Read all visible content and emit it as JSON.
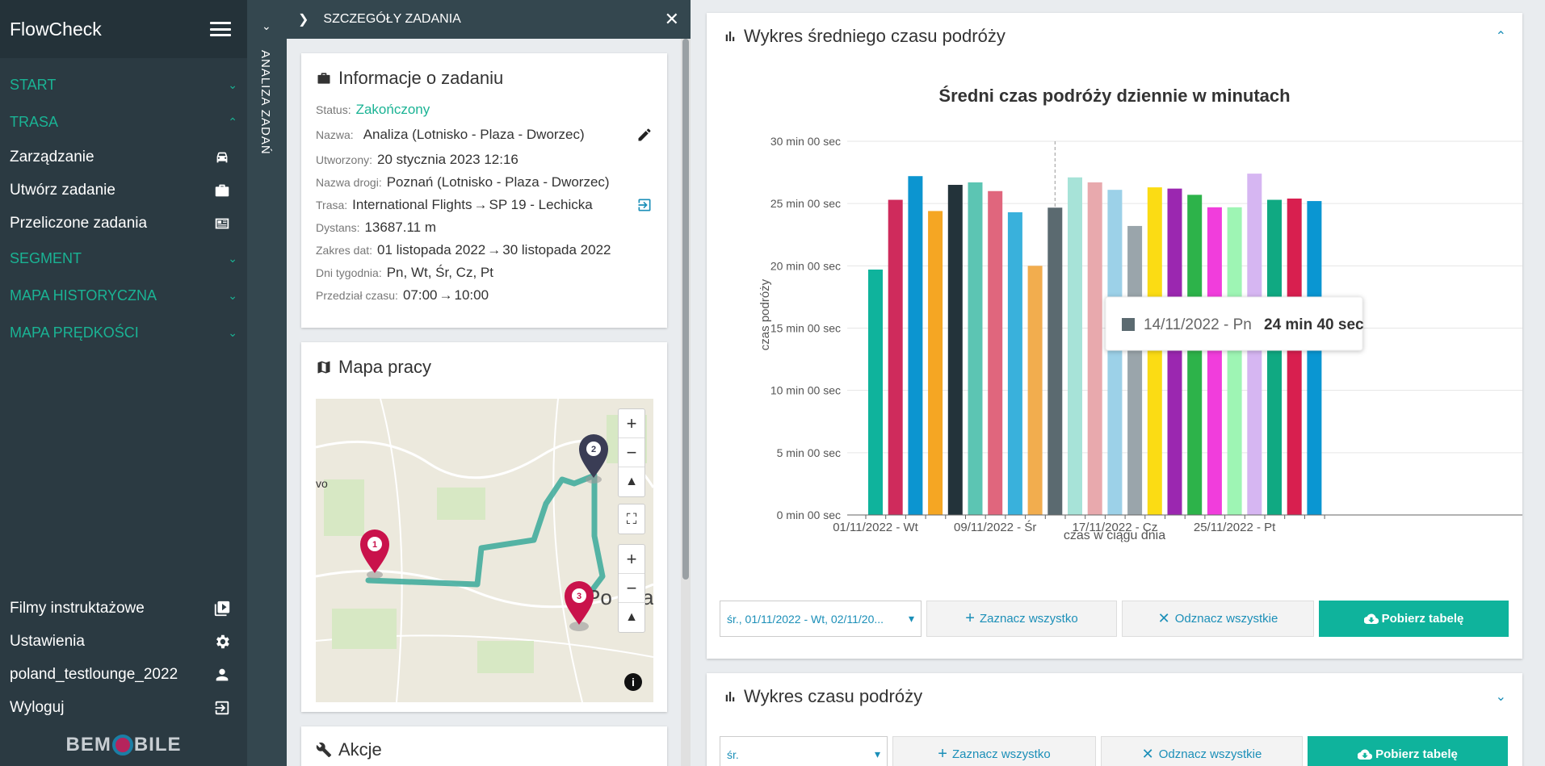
{
  "app": {
    "title": "FlowCheck"
  },
  "sidebar": {
    "sections": [
      {
        "label": "START"
      },
      {
        "label": "TRASA"
      },
      {
        "label": "SEGMENT"
      },
      {
        "label": "MAPA HISTORYCZNA"
      },
      {
        "label": "MAPA PRĘDKOŚCI"
      }
    ],
    "trasa_items": [
      {
        "label": "Zarządzanie",
        "icon": "car-icon"
      },
      {
        "label": "Utwórz zadanie",
        "icon": "briefcase-icon"
      },
      {
        "label": "Przeliczone zadania",
        "icon": "newspaper-icon"
      }
    ],
    "bottom_items": [
      {
        "label": "Filmy instruktażowe",
        "icon": "video-icon"
      },
      {
        "label": "Ustawienia",
        "icon": "gear-icon"
      },
      {
        "label": "poland_testlounge_2022",
        "icon": "user-icon"
      },
      {
        "label": "Wyloguj",
        "icon": "logout-icon"
      }
    ],
    "logo": {
      "left": "BEM",
      "right": "BILE"
    }
  },
  "strip": {
    "label": "ANALIZA ZADAŃ"
  },
  "details": {
    "header": "SZCZEGÓŁY ZADANIA",
    "info_title": "Informacje o zadaniu",
    "status_label": "Status:",
    "status_value": "Zakończony",
    "name_label": "Nazwa:",
    "name_value": "Analiza (Lotnisko - Plaza - Dworzec)",
    "created_label": "Utworzony:",
    "created_value": "20 stycznia 2023 12:16",
    "road_label": "Nazwa drogi:",
    "road_value": "Poznań (Lotnisko - Plaza - Dworzec)",
    "route_label": "Trasa:",
    "route_from": "International Flights",
    "route_to": "SP 19 - Lechicka",
    "distance_label": "Dystans:",
    "distance_value": "13687.11 m",
    "dates_label": "Zakres dat:",
    "dates_from": "01 listopada 2022",
    "dates_to": "30 listopada 2022",
    "days_label": "Dni tygodnia:",
    "days_value": "Pn, Wt, Śr, Cz, Pt",
    "time_label": "Przedział czasu:",
    "time_from": "07:00",
    "time_to": "10:00",
    "map_title": "Mapa pracy",
    "map_city": "Po",
    "map_city2": "a",
    "map_label_left": "vo",
    "actions_title": "Akcje"
  },
  "chart_panel": {
    "title": "Wykres średniego czasu podróży",
    "select_value": "śr., 01/11/2022 - Wt, 02/11/20...",
    "select_all": "Zaznacz wszystko",
    "deselect_all": "Odznacz wszystkie",
    "download": "Pobierz tabelę"
  },
  "chart_panel2": {
    "title": "Wykres czasu podróży",
    "select_value": "śr.",
    "select_all": "Zaznacz wszystko",
    "deselect_all": "Odznacz wszystkie",
    "download": "Pobierz tabelę"
  },
  "tooltip": {
    "label": "14/11/2022 - Pn",
    "value": "24 min 40 sec"
  },
  "chart_data": {
    "type": "bar",
    "title": "Średni czas podróży dziennie w minutach",
    "xlabel": "czas w ciągu dnia",
    "ylabel": "czas podróży",
    "ylim": [
      0,
      30
    ],
    "y_ticks": [
      "0 min 00 sec",
      "5 min 00 sec",
      "10 min 00 sec",
      "15 min 00 sec",
      "20 min 00 sec",
      "25 min 00 sec",
      "30 min 00 sec"
    ],
    "x_tick_labels": [
      "01/11/2022 - Wt",
      "09/11/2022 - Śr",
      "17/11/2022 - Cz",
      "25/11/2022 - Pt"
    ],
    "x_tick_indices": [
      0,
      6,
      12,
      18
    ],
    "values": [
      19.7,
      25.3,
      27.2,
      24.4,
      26.5,
      26.7,
      26.0,
      24.3,
      20.0,
      24.67,
      27.1,
      26.7,
      26.1,
      23.2,
      26.3,
      26.2,
      25.7,
      24.7,
      24.7,
      27.4,
      25.3,
      25.4,
      25.2
    ],
    "colors": [
      "#0fb39c",
      "#cf2b5c",
      "#0c95d0",
      "#f5a623",
      "#23333a",
      "#5cc5b3",
      "#e0667d",
      "#39b1dc",
      "#f2ad4e",
      "#5b6a70",
      "#a7e3d8",
      "#e8a9ad",
      "#9cd1e8",
      "#9aa5ab",
      "#fbdc14",
      "#9b27b0",
      "#2db34a",
      "#f13ddc",
      "#9ef5b4",
      "#d6b6f2",
      "#10a982",
      "#d81f4f",
      "#0a96d2"
    ],
    "highlight_index": 9,
    "grid": true
  }
}
